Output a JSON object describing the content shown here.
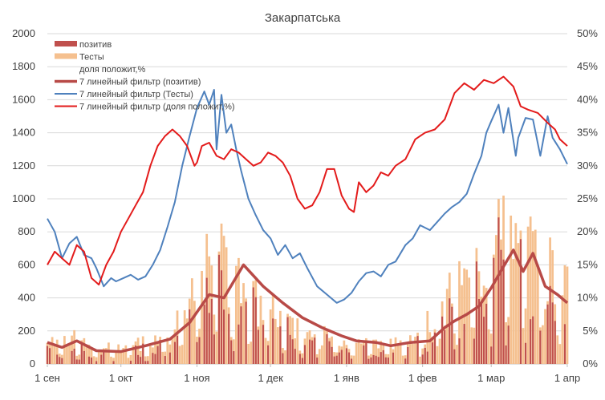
{
  "chart_data": {
    "type": "bar",
    "title": "Закарпатська",
    "x_tick_labels": [
      "1 сен",
      "1 окт",
      "1 ноя",
      "1 дек",
      "1 янв",
      "1 фев",
      "1 мар",
      "1 апр"
    ],
    "y_ticks": [
      "0",
      "200",
      "400",
      "600",
      "800",
      "1000",
      "1200",
      "1400",
      "1600",
      "1800",
      "2000"
    ],
    "y2_ticks": [
      "0%",
      "5%",
      "10%",
      "15%",
      "20%",
      "25%",
      "30%",
      "35%",
      "40%",
      "45%",
      "50%"
    ],
    "ylim": [
      0,
      2000
    ],
    "y2lim": [
      0,
      0.5
    ],
    "grid": true,
    "legend_position": "top-left",
    "colors": {
      "positive_bars": "#c0504d",
      "test_bars": "#f5c08f",
      "positive_ma": "#b84a47",
      "tests_ma": "#4f81bd",
      "share_ma": "#e31b1b"
    },
    "legend": [
      {
        "label": "позитив",
        "kind": "bar",
        "color": "#c0504d"
      },
      {
        "label": "Тесты",
        "kind": "bar",
        "color": "#f5c08f"
      },
      {
        "label": "доля положит,%",
        "kind": "none",
        "color": "#ffffff"
      },
      {
        "label": "7 линейный фильтр (позитив)",
        "kind": "line",
        "color": "#b84a47"
      },
      {
        "label": "7 линейный фильтр (Тесты)",
        "kind": "line",
        "color": "#4f81bd"
      },
      {
        "label": "7 линейный фильтр (доля положит,%)",
        "kind": "line",
        "color": "#e31b1b"
      }
    ],
    "month_start_days": [
      0,
      30,
      61,
      91,
      122,
      153,
      181,
      212
    ],
    "series": [
      {
        "name": "7 линейный фильтр (позитив)",
        "axis": "left",
        "days": [
          0,
          6,
          12,
          20,
          30,
          40,
          50,
          58,
          66,
          72,
          80,
          88,
          96,
          104,
          112,
          120,
          126,
          134,
          140,
          148,
          156,
          162,
          166,
          171,
          176,
          181,
          186,
          190,
          194,
          198,
          203,
          208,
          212
        ],
        "values": [
          130,
          100,
          140,
          80,
          75,
          110,
          150,
          250,
          420,
          400,
          600,
          470,
          370,
          280,
          220,
          170,
          140,
          130,
          110,
          130,
          140,
          220,
          260,
          300,
          350,
          460,
          590,
          690,
          560,
          670,
          470,
          420,
          370
        ]
      },
      {
        "name": "7 линейный фильтр (Тесты)",
        "axis": "left",
        "days": [
          0,
          3,
          6,
          9,
          12,
          15,
          18,
          20,
          23,
          26,
          28,
          31,
          34,
          37,
          40,
          43,
          46,
          49,
          52,
          55,
          58,
          61,
          64,
          66,
          68,
          69,
          71,
          73,
          75,
          77,
          79,
          82,
          85,
          88,
          91,
          94,
          97,
          100,
          103,
          106,
          110,
          114,
          118,
          121,
          124,
          127,
          130,
          133,
          136,
          139,
          142,
          146,
          149,
          152,
          156,
          159,
          162,
          165,
          168,
          171,
          174,
          177,
          179,
          181,
          184,
          186,
          188,
          191,
          192,
          195,
          198,
          201,
          204,
          206,
          209,
          212
        ],
        "values": [
          880,
          800,
          640,
          730,
          770,
          660,
          640,
          580,
          470,
          520,
          500,
          520,
          540,
          510,
          530,
          600,
          690,
          830,
          980,
          1200,
          1380,
          1550,
          1650,
          1570,
          1660,
          1300,
          1630,
          1400,
          1450,
          1300,
          1170,
          1000,
          900,
          810,
          760,
          660,
          720,
          640,
          670,
          580,
          470,
          420,
          370,
          390,
          430,
          500,
          550,
          560,
          530,
          600,
          620,
          720,
          760,
          840,
          810,
          860,
          910,
          950,
          980,
          1030,
          1150,
          1260,
          1400,
          1470,
          1570,
          1400,
          1550,
          1260,
          1370,
          1490,
          1480,
          1260,
          1500,
          1370,
          1300,
          1210
        ]
      },
      {
        "name": "7 линейный фильтр (доля положит,%)",
        "axis": "right",
        "days": [
          0,
          3,
          6,
          9,
          12,
          15,
          18,
          21,
          24,
          27,
          30,
          33,
          36,
          39,
          42,
          45,
          48,
          51,
          54,
          57,
          60,
          61,
          63,
          66,
          69,
          72,
          75,
          78,
          81,
          84,
          87,
          90,
          93,
          96,
          99,
          102,
          105,
          108,
          111,
          114,
          117,
          120,
          123,
          125,
          127,
          130,
          133,
          136,
          139,
          142,
          146,
          150,
          154,
          158,
          162,
          166,
          170,
          174,
          178,
          182,
          186,
          190,
          193,
          196,
          200,
          204,
          207,
          209,
          212
        ],
        "values": [
          0.15,
          0.17,
          0.16,
          0.15,
          0.18,
          0.17,
          0.13,
          0.12,
          0.15,
          0.17,
          0.2,
          0.22,
          0.24,
          0.26,
          0.3,
          0.33,
          0.345,
          0.355,
          0.345,
          0.33,
          0.3,
          0.305,
          0.33,
          0.335,
          0.315,
          0.31,
          0.325,
          0.32,
          0.31,
          0.3,
          0.305,
          0.32,
          0.315,
          0.305,
          0.285,
          0.25,
          0.235,
          0.24,
          0.26,
          0.295,
          0.295,
          0.255,
          0.235,
          0.23,
          0.275,
          0.26,
          0.27,
          0.29,
          0.285,
          0.3,
          0.31,
          0.34,
          0.35,
          0.355,
          0.37,
          0.41,
          0.425,
          0.415,
          0.43,
          0.425,
          0.435,
          0.42,
          0.39,
          0.385,
          0.38,
          0.365,
          0.355,
          0.34,
          0.33
        ]
      }
    ],
    "bars": {
      "tests_envelope_days": [
        0,
        10,
        20,
        30,
        40,
        50,
        58,
        62,
        66,
        70,
        76,
        84,
        92,
        100,
        108,
        116,
        124,
        132,
        140,
        148,
        156,
        164,
        172,
        178,
        182,
        186,
        190,
        196,
        202,
        208,
        212
      ],
      "tests_envelope_values": [
        140,
        180,
        100,
        120,
        160,
        230,
        380,
        600,
        680,
        780,
        610,
        450,
        360,
        250,
        210,
        180,
        160,
        150,
        130,
        180,
        280,
        470,
        600,
        750,
        950,
        900,
        850,
        800,
        700,
        660,
        500
      ],
      "positive_envelope_days": [
        0,
        10,
        20,
        30,
        40,
        50,
        58,
        62,
        66,
        70,
        76,
        84,
        92,
        100,
        108,
        116,
        124,
        132,
        140,
        148,
        156,
        164,
        172,
        178,
        182,
        186,
        190,
        196,
        202,
        208,
        212
      ],
      "positive_envelope_values": [
        120,
        120,
        70,
        70,
        110,
        150,
        270,
        420,
        560,
        620,
        520,
        370,
        290,
        210,
        170,
        140,
        130,
        110,
        100,
        120,
        190,
        330,
        440,
        520,
        690,
        720,
        620,
        560,
        540,
        510,
        370
      ]
    }
  }
}
